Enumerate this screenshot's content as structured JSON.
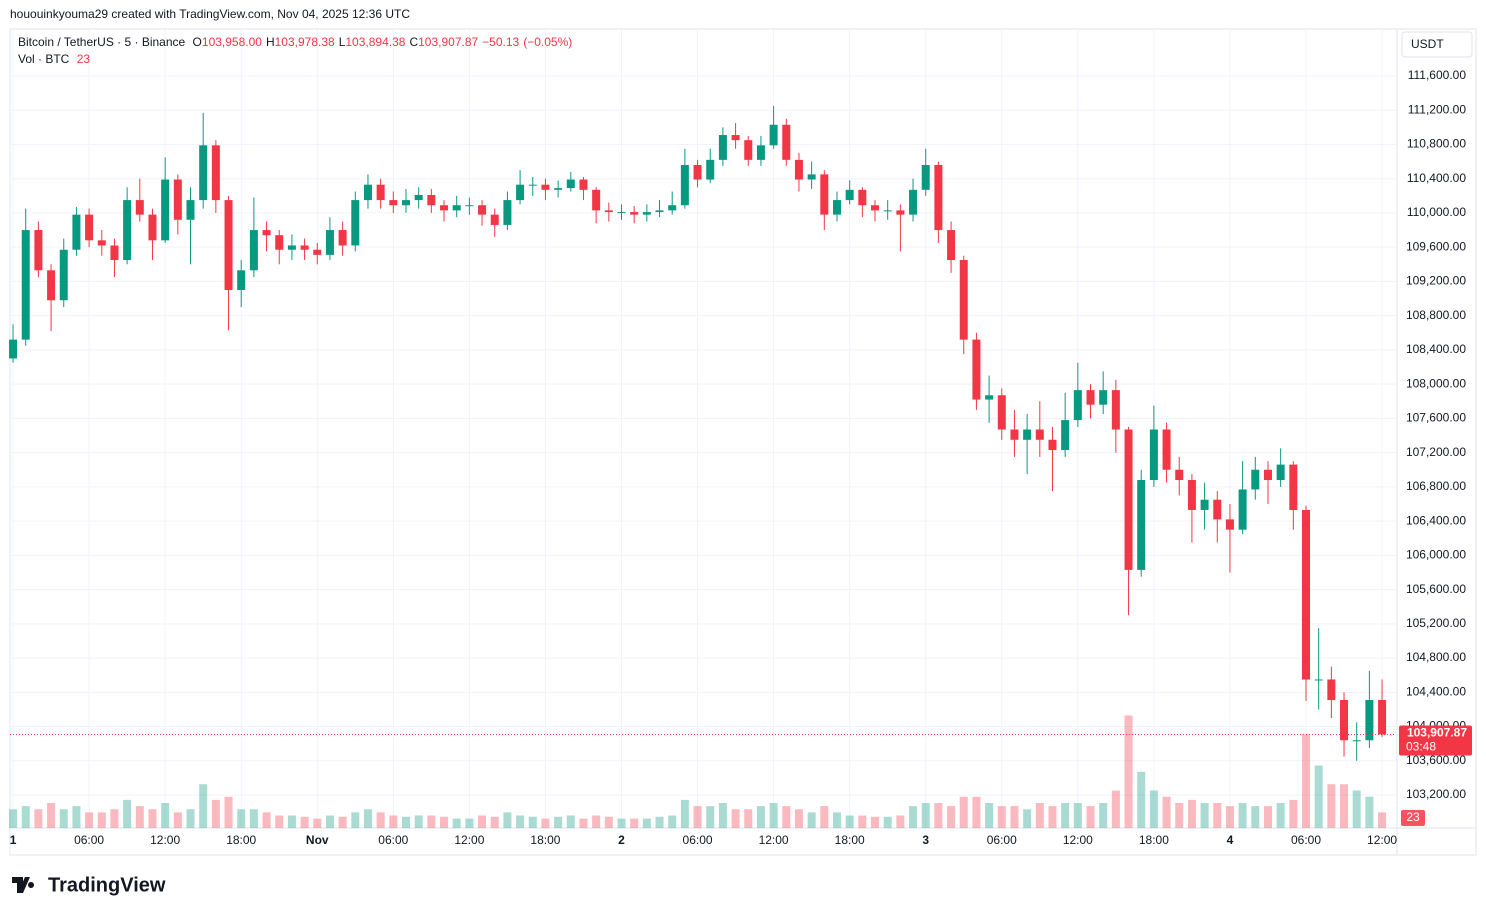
{
  "header": {
    "attribution": "hououinkyouma29 created with TradingView.com, Nov 04, 2025 12:36 UTC"
  },
  "chart_data": {
    "type": "candlestick",
    "symbol": "Bitcoin / TetherUS · 5 · Binance",
    "ohlc_legend": [
      {
        "key": "O",
        "value": 103958,
        "label": "103,958.00"
      },
      {
        "key": "H",
        "value": 103978.38,
        "label": "103,978.38"
      },
      {
        "key": "L",
        "value": 103894.38,
        "label": "103,894.38"
      },
      {
        "key": "C",
        "value": 103907.87,
        "label": "103,907.87"
      }
    ],
    "change": {
      "value": -50.13,
      "label": "−50.13"
    },
    "change_pct": {
      "value": -0.05,
      "label": "(−0.05%)"
    },
    "volume_name": "Vol · BTC",
    "volume_last": 23,
    "currency": "USDT",
    "last_price": {
      "value": 103907.87,
      "label": "103,907.87"
    },
    "countdown": "03:48",
    "up_color": "#089981",
    "down_color": "#f23645",
    "grid": true,
    "ylim": [
      102815,
      112137
    ],
    "yticks": [
      {
        "value": 103200,
        "label": "103,200.00"
      },
      {
        "value": 103600,
        "label": "103,600.00"
      },
      {
        "value": 104000,
        "label": "104,000.00"
      },
      {
        "value": 104400,
        "label": "104,400.00"
      },
      {
        "value": 104800,
        "label": "104,800.00"
      },
      {
        "value": 105200,
        "label": "105,200.00"
      },
      {
        "value": 105600,
        "label": "105,600.00"
      },
      {
        "value": 106000,
        "label": "106,000.00"
      },
      {
        "value": 106400,
        "label": "106,400.00"
      },
      {
        "value": 106800,
        "label": "106,800.00"
      },
      {
        "value": 107200,
        "label": "107,200.00"
      },
      {
        "value": 107600,
        "label": "107,600.00"
      },
      {
        "value": 108000,
        "label": "108,000.00"
      },
      {
        "value": 108400,
        "label": "108,400.00"
      },
      {
        "value": 108800,
        "label": "108,800.00"
      },
      {
        "value": 109200,
        "label": "109,200.00"
      },
      {
        "value": 109600,
        "label": "109,600.00"
      },
      {
        "value": 110000,
        "label": "110,000.00"
      },
      {
        "value": 110400,
        "label": "110,400.00"
      },
      {
        "value": 110800,
        "label": "110,800.00"
      },
      {
        "value": 111200,
        "label": "111,200.00"
      },
      {
        "value": 111600,
        "label": "111,600.00"
      }
    ],
    "xlim": [
      -0.24,
      109.1
    ],
    "xticks": [
      {
        "value": 0,
        "label": "1"
      },
      {
        "value": 6,
        "label": "06:00"
      },
      {
        "value": 12,
        "label": "12:00"
      },
      {
        "value": 18,
        "label": "18:00"
      },
      {
        "value": 24,
        "label": "Nov"
      },
      {
        "value": 30,
        "label": "06:00"
      },
      {
        "value": 36,
        "label": "12:00"
      },
      {
        "value": 42,
        "label": "18:00"
      },
      {
        "value": 48,
        "label": "2"
      },
      {
        "value": 54,
        "label": "06:00"
      },
      {
        "value": 60,
        "label": "12:00"
      },
      {
        "value": 66,
        "label": "18:00"
      },
      {
        "value": 72,
        "label": "3"
      },
      {
        "value": 78,
        "label": "06:00"
      },
      {
        "value": 84,
        "label": "12:00"
      },
      {
        "value": 90,
        "label": "18:00"
      },
      {
        "value": 96,
        "label": "4"
      },
      {
        "value": 102,
        "label": "06:00"
      },
      {
        "value": 108,
        "label": "12:00"
      }
    ],
    "volume_lim": [
      0,
      4000
    ],
    "x": [
      0,
      1,
      2,
      3,
      4,
      5,
      6,
      7,
      8,
      9,
      10,
      11,
      12,
      13,
      14,
      15,
      16,
      17,
      18,
      19,
      20,
      21,
      22,
      23,
      24,
      25,
      26,
      27,
      28,
      29,
      30,
      31,
      32,
      33,
      34,
      35,
      36,
      37,
      38,
      39,
      40,
      41,
      42,
      43,
      44,
      45,
      46,
      47,
      48,
      49,
      50,
      51,
      52,
      53,
      54,
      55,
      56,
      57,
      58,
      59,
      60,
      61,
      62,
      63,
      64,
      65,
      66,
      67,
      68,
      69,
      70,
      71,
      72,
      73,
      74,
      75,
      76,
      77,
      78,
      79,
      80,
      81,
      82,
      83,
      84,
      85,
      86,
      87,
      88,
      89,
      90,
      91,
      92,
      93,
      94,
      95,
      96,
      97,
      98,
      99,
      100,
      101,
      102,
      103,
      104,
      105,
      106,
      107,
      108
    ],
    "open": [
      108300,
      108520,
      109800,
      109330,
      108980,
      109570,
      109980,
      109680,
      109620,
      109450,
      110150,
      109980,
      109680,
      110390,
      109920,
      110150,
      110790,
      110150,
      109100,
      109330,
      109800,
      109740,
      109570,
      109620,
      109570,
      109510,
      109800,
      109620,
      110150,
      110330,
      110150,
      110090,
      110150,
      110210,
      110090,
      110030,
      110090,
      110090,
      109980,
      109860,
      110150,
      110330,
      110330,
      110270,
      110290,
      110390,
      110270,
      110030,
      110010,
      110010,
      109980,
      110010,
      110030,
      110090,
      110560,
      110390,
      110620,
      110910,
      110850,
      110620,
      110790,
      111030,
      110620,
      110390,
      110450,
      109980,
      110150,
      110270,
      110090,
      110030,
      110030,
      109980,
      110270,
      110560,
      109800,
      109450,
      108520,
      107820,
      107870,
      107470,
      107350,
      107470,
      107350,
      107230,
      107580,
      107930,
      107760,
      107930,
      107470,
      105830,
      106880,
      107470,
      107000,
      106880,
      106530,
      106650,
      106420,
      106300,
      106770,
      107000,
      106880,
      107060,
      106530,
      104550,
      104550,
      104310,
      103840,
      103840,
      104310
    ],
    "high": [
      108700,
      110050,
      109900,
      109400,
      109700,
      110070,
      110050,
      109800,
      109700,
      110300,
      110400,
      110050,
      110650,
      110450,
      110300,
      111170,
      110850,
      110200,
      109450,
      110180,
      109900,
      109800,
      109750,
      109700,
      109650,
      109950,
      109900,
      110250,
      110450,
      110400,
      110250,
      110280,
      110300,
      110280,
      110150,
      110200,
      110180,
      110150,
      110050,
      110250,
      110500,
      110420,
      110400,
      110380,
      110480,
      110420,
      110300,
      110120,
      110100,
      110080,
      110100,
      110150,
      110250,
      110750,
      110620,
      110750,
      111000,
      111050,
      110900,
      110900,
      111250,
      111100,
      110700,
      110600,
      110500,
      110250,
      110380,
      110300,
      110150,
      110150,
      110100,
      110400,
      110750,
      110600,
      109900,
      109500,
      108600,
      108100,
      107950,
      107700,
      107650,
      107800,
      107500,
      107900,
      108250,
      108000,
      108150,
      108050,
      107500,
      107000,
      107750,
      107550,
      107150,
      106950,
      106850,
      106750,
      106600,
      107100,
      107150,
      107100,
      107250,
      107100,
      106580,
      105150,
      104700,
      104400,
      104050,
      104650,
      104550
    ],
    "low": [
      108250,
      108450,
      109250,
      108620,
      108900,
      109500,
      109600,
      109500,
      109250,
      109400,
      109900,
      109450,
      109650,
      109750,
      109400,
      110050,
      110000,
      108630,
      108900,
      109250,
      109550,
      109400,
      109450,
      109450,
      109400,
      109450,
      109500,
      109550,
      110050,
      110050,
      110000,
      110000,
      110050,
      110000,
      109900,
      109950,
      109980,
      109850,
      109720,
      109800,
      110100,
      110200,
      110150,
      110180,
      110250,
      110150,
      109880,
      109900,
      109920,
      109880,
      109900,
      109950,
      109980,
      110050,
      110300,
      110350,
      110550,
      110750,
      110550,
      110550,
      110750,
      110550,
      110250,
      110280,
      109800,
      109900,
      110100,
      109950,
      109900,
      109920,
      109550,
      109900,
      110200,
      109650,
      109300,
      108350,
      107700,
      107550,
      107350,
      107150,
      106950,
      107150,
      106750,
      107150,
      107500,
      107600,
      107650,
      107200,
      105300,
      105750,
      106800,
      106850,
      106700,
      106150,
      106300,
      106150,
      105800,
      106250,
      106650,
      106600,
      106800,
      106300,
      104300,
      104200,
      104100,
      103650,
      103600,
      103750,
      103880
    ],
    "close": [
      108520,
      109800,
      109330,
      108980,
      109570,
      109980,
      109680,
      109620,
      109450,
      110150,
      109980,
      109680,
      110390,
      109920,
      110150,
      110790,
      110150,
      109100,
      109330,
      109800,
      109740,
      109570,
      109620,
      109570,
      109510,
      109800,
      109620,
      110150,
      110330,
      110150,
      110090,
      110150,
      110210,
      110090,
      110030,
      110090,
      110090,
      109980,
      109860,
      110150,
      110330,
      110330,
      110270,
      110290,
      110390,
      110270,
      110030,
      110010,
      110010,
      109980,
      110010,
      110030,
      110090,
      110560,
      110390,
      110620,
      110910,
      110850,
      110620,
      110790,
      111030,
      110620,
      110390,
      110450,
      109980,
      110150,
      110270,
      110090,
      110030,
      110030,
      109980,
      110270,
      110560,
      109800,
      109450,
      108520,
      107820,
      107870,
      107470,
      107350,
      107470,
      107350,
      107230,
      107580,
      107930,
      107760,
      107930,
      107470,
      105830,
      106880,
      107470,
      107000,
      106880,
      106530,
      106650,
      106420,
      106300,
      106770,
      107000,
      106880,
      107060,
      106530,
      104550,
      104550,
      104310,
      103840,
      103840,
      104310,
      103908
    ],
    "volume": [
      300,
      350,
      300,
      400,
      300,
      350,
      250,
      250,
      300,
      450,
      350,
      300,
      400,
      250,
      300,
      700,
      450,
      500,
      300,
      300,
      250,
      200,
      200,
      180,
      150,
      200,
      180,
      250,
      300,
      250,
      200,
      180,
      200,
      200,
      180,
      150,
      150,
      200,
      180,
      250,
      200,
      180,
      150,
      180,
      200,
      150,
      200,
      180,
      150,
      150,
      150,
      180,
      200,
      450,
      350,
      350,
      400,
      300,
      300,
      350,
      400,
      350,
      300,
      250,
      350,
      250,
      200,
      200,
      180,
      180,
      200,
      350,
      400,
      400,
      350,
      500,
      500,
      400,
      350,
      350,
      300,
      400,
      350,
      400,
      400,
      350,
      400,
      600,
      1800,
      900,
      600,
      500,
      400,
      450,
      400,
      400,
      350,
      400,
      350,
      350,
      400,
      450,
      1500,
      1000,
      700,
      700,
      600,
      500,
      250
    ],
    "brand": "TradingView"
  }
}
